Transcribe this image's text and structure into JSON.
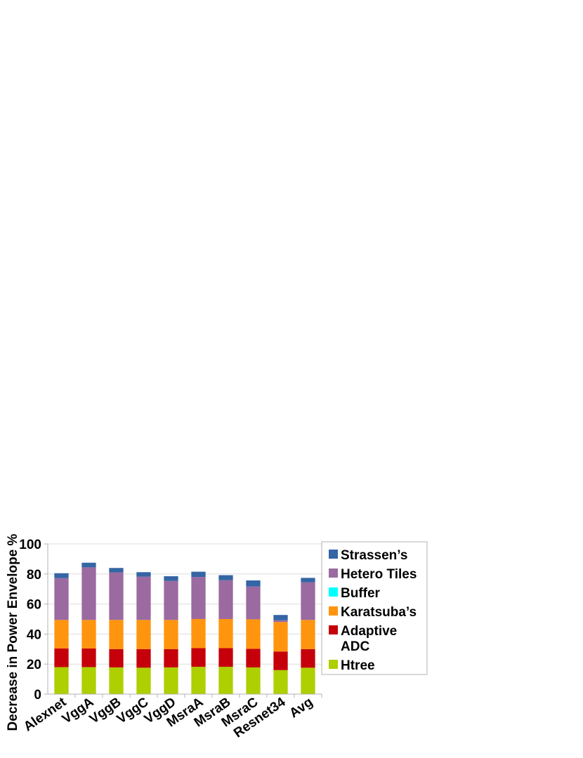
{
  "chart_data": {
    "type": "bar",
    "stacked": true,
    "title": "",
    "xlabel": "",
    "ylabel": "Decrease in Power Envelope %",
    "ylim": [
      0,
      100
    ],
    "yticks": [
      0,
      20,
      40,
      60,
      80,
      100
    ],
    "grid": true,
    "legend_position": "right",
    "categories": [
      "Alexnet",
      "VggA",
      "VggB",
      "VggC",
      "VggD",
      "MsraA",
      "MsraB",
      "MsraC",
      "Resnet34",
      "Avg"
    ],
    "series": [
      {
        "name": "Htree",
        "color": "#aecf00",
        "values": [
          18,
          18,
          17.8,
          17.6,
          17.8,
          18.2,
          18.2,
          17.8,
          16,
          17.6
        ]
      },
      {
        "name": "Adaptive ADC",
        "color": "#c5000b",
        "values": [
          12.4,
          12.4,
          12.2,
          12.4,
          12.2,
          12.4,
          12.4,
          12.4,
          12.4,
          12.4
        ]
      },
      {
        "name": "Karatsuba’s",
        "color": "#ff950e",
        "values": [
          19,
          19,
          19.4,
          19.4,
          19.4,
          19.4,
          19.4,
          19.6,
          19.6,
          19.4
        ]
      },
      {
        "name": "Buffer",
        "color": "#00ffff",
        "values": [
          0,
          0,
          0,
          0,
          0,
          0,
          0,
          0,
          0,
          0
        ]
      },
      {
        "name": "Hetero Tiles",
        "color": "#9b6aa0",
        "values": [
          27.8,
          35,
          31.6,
          28.8,
          26,
          28,
          25.8,
          21.8,
          1.2,
          25
        ]
      },
      {
        "name": "Strassen’s",
        "color": "#3465a4",
        "values": [
          3.3,
          3.1,
          3,
          3,
          3.1,
          3.5,
          3.4,
          4.1,
          3.5,
          3
        ]
      }
    ],
    "legend_order": [
      "Strassen’s",
      "Hetero Tiles",
      "Buffer",
      "Karatsuba’s",
      "Adaptive ADC",
      "Htree"
    ]
  }
}
